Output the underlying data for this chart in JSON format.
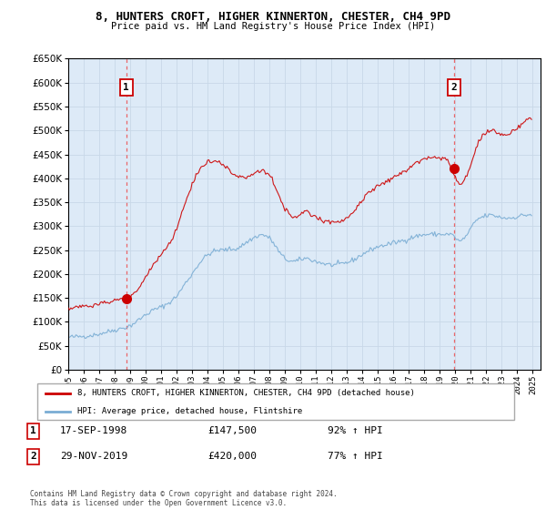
{
  "title": "8, HUNTERS CROFT, HIGHER KINNERTON, CHESTER, CH4 9PD",
  "subtitle": "Price paid vs. HM Land Registry's House Price Index (HPI)",
  "ylim": [
    0,
    650000
  ],
  "yticks": [
    0,
    50000,
    100000,
    150000,
    200000,
    250000,
    300000,
    350000,
    400000,
    450000,
    500000,
    550000,
    600000,
    650000
  ],
  "xlim_start": 1995.0,
  "xlim_end": 2025.5,
  "sale1_x": 1998.75,
  "sale1_y": 147500,
  "sale1_label": "1",
  "sale1_date": "17-SEP-1998",
  "sale1_price": "£147,500",
  "sale1_hpi": "92% ↑ HPI",
  "sale2_x": 2019.92,
  "sale2_y": 420000,
  "sale2_label": "2",
  "sale2_date": "29-NOV-2019",
  "sale2_price": "£420,000",
  "sale2_hpi": "77% ↑ HPI",
  "line1_color": "#cc0000",
  "line2_color": "#7aadd4",
  "chart_bg": "#ddeaf7",
  "legend_line1": "8, HUNTERS CROFT, HIGHER KINNERTON, CHESTER, CH4 9PD (detached house)",
  "legend_line2": "HPI: Average price, detached house, Flintshire",
  "footer": "Contains HM Land Registry data © Crown copyright and database right 2024.\nThis data is licensed under the Open Government Licence v3.0.",
  "background_color": "#ffffff",
  "grid_color": "#c8d8e8"
}
